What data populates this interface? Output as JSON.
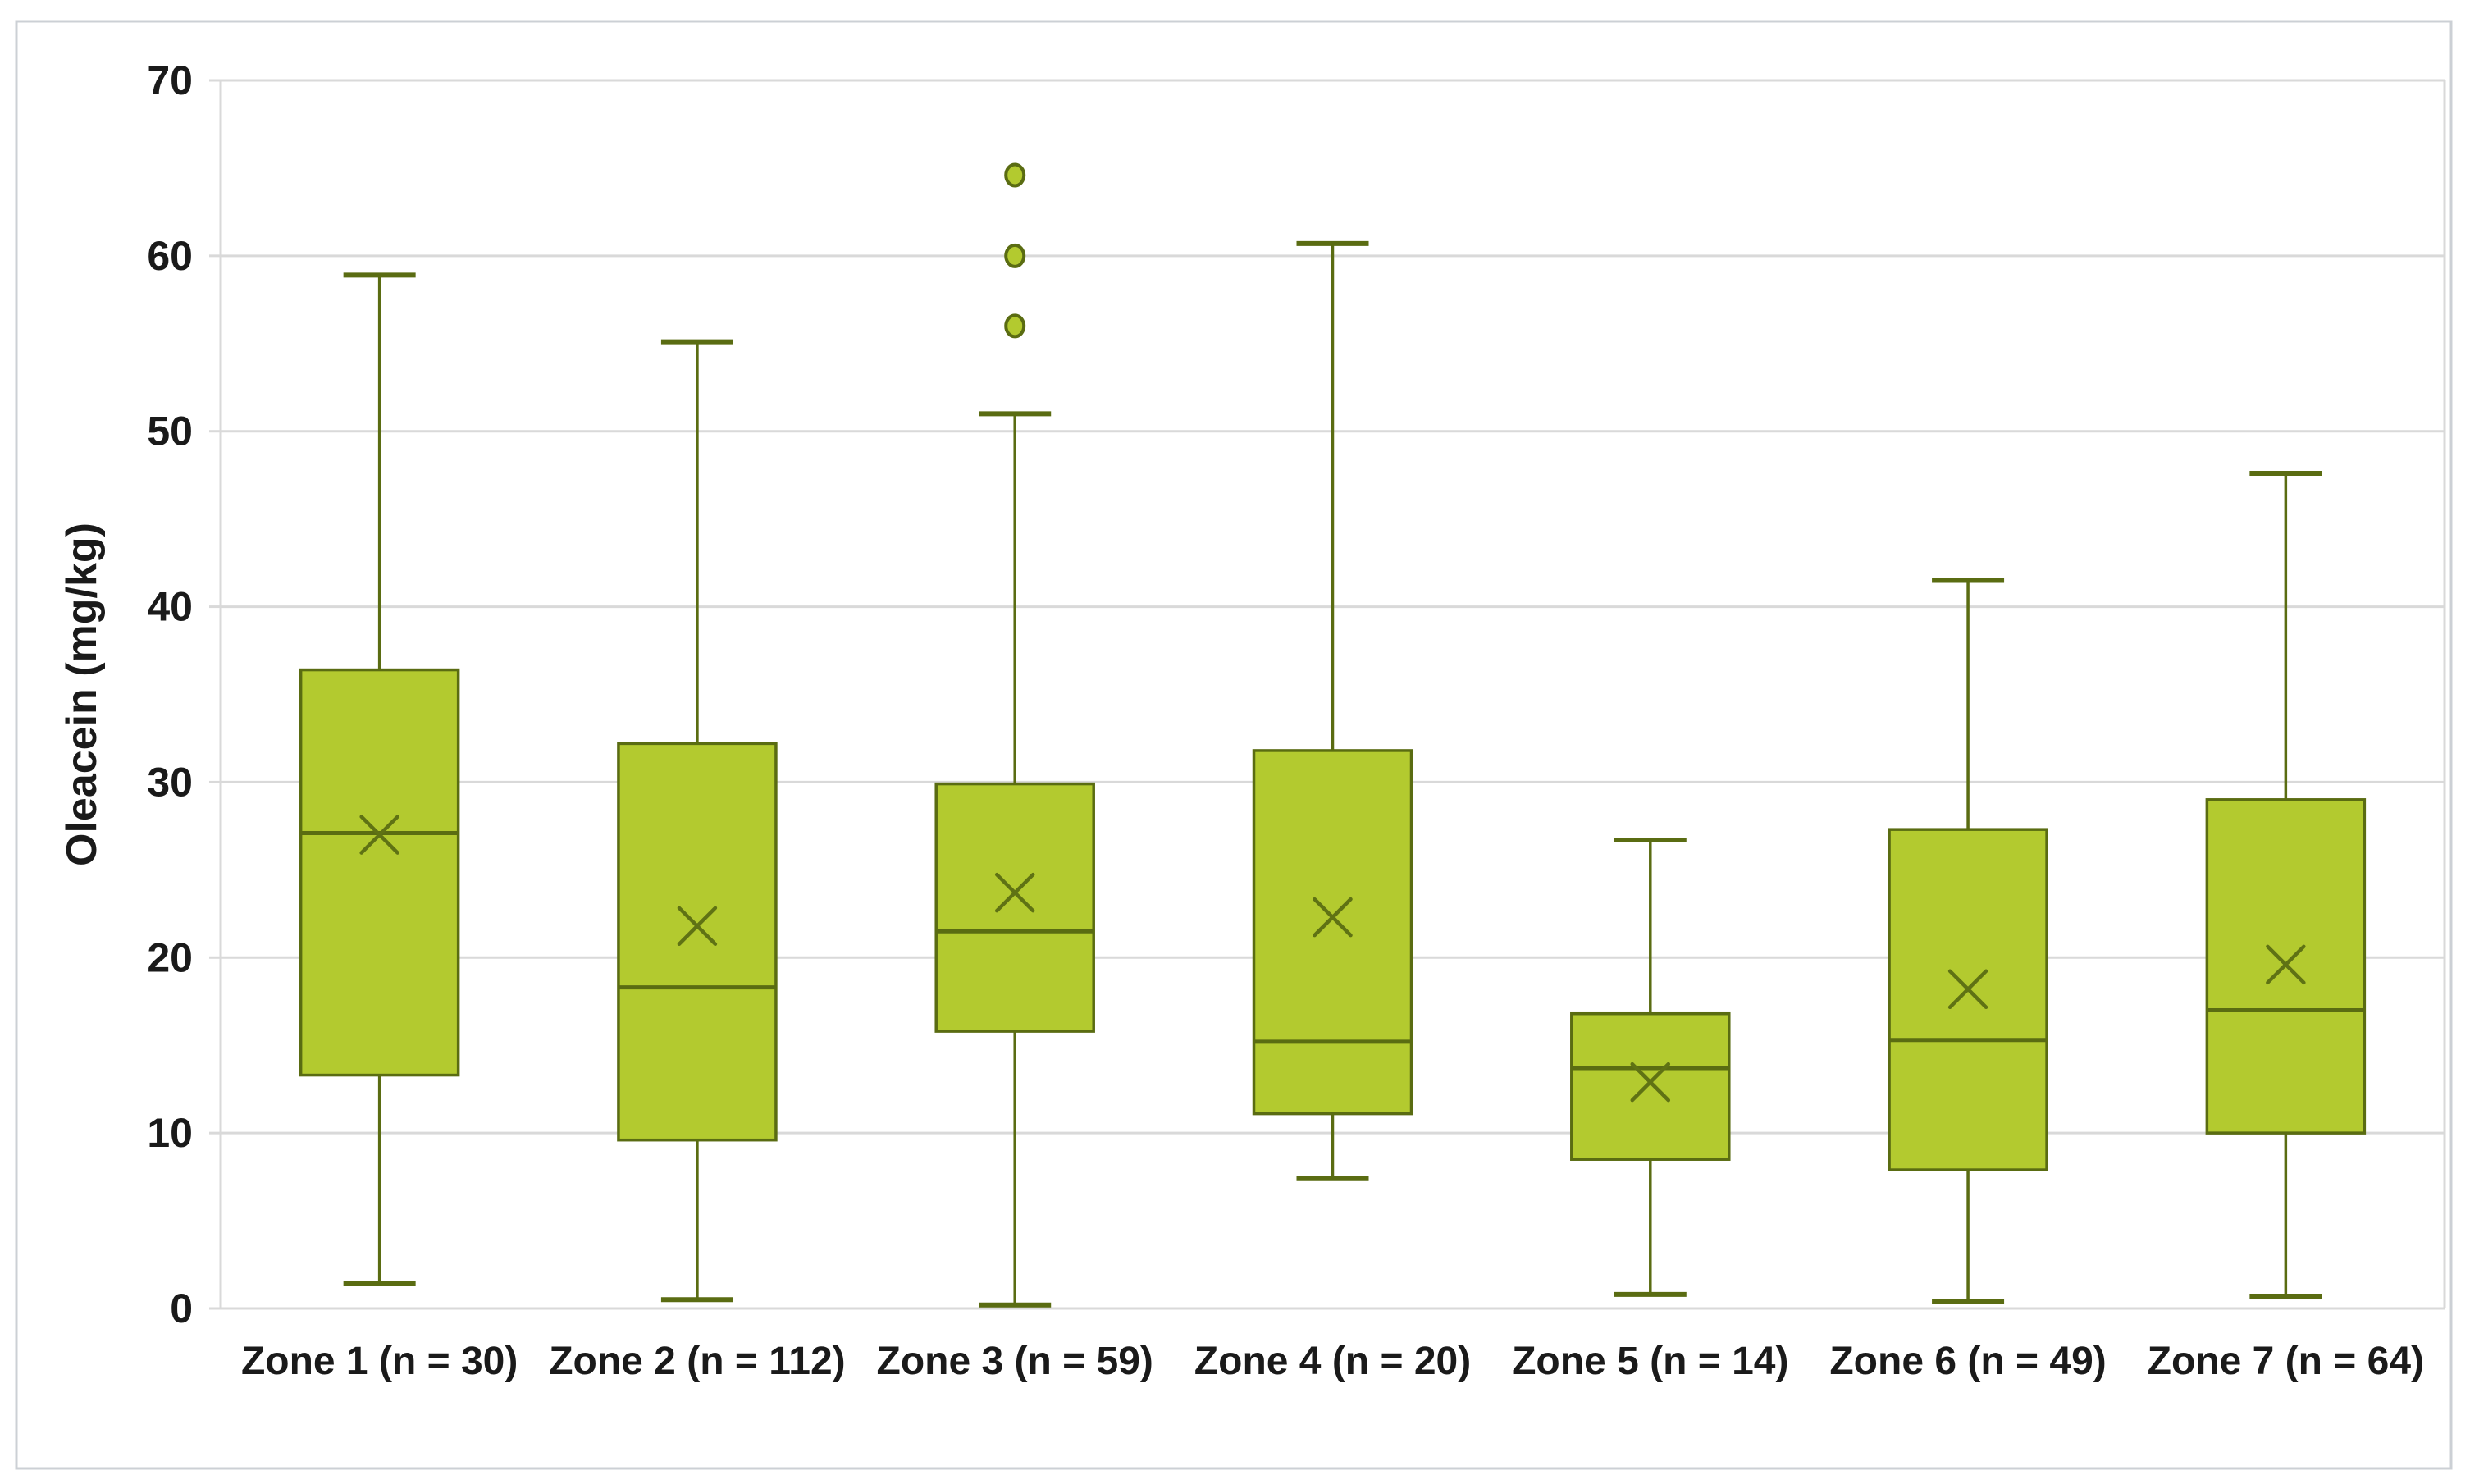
{
  "figure": {
    "background": "#ffffff",
    "border_color": "#ccd0d5"
  },
  "colors": {
    "box_fill": "#b3ca2f",
    "box_stroke": "#5a6c12",
    "whisker_stroke": "#5a6c12",
    "mean_marker_stroke": "#5f7214",
    "gridline": "#d9d9d9",
    "plot_border": "#d9d9d9",
    "tick": "#d9d9d9",
    "text": "#1a1a1a"
  },
  "chart_data": {
    "type": "box",
    "title": "",
    "xlabel": "",
    "ylabel": "Oleacein (mg/kg)",
    "ylim": [
      0,
      70
    ],
    "ytick_step": 10,
    "ytick_labels": [
      "0",
      "10",
      "20",
      "30",
      "40",
      "50",
      "60",
      "70"
    ],
    "grid": "horizontal-gridlines-on",
    "legend": "none",
    "categories": [
      "Zone 1 (n = 30)",
      "Zone 2 (n = 112)",
      "Zone 3 (n = 59)",
      "Zone 4 (n = 20)",
      "Zone 5 (n = 14)",
      "Zone 6 (n = 49)",
      "Zone 7 (n = 64)"
    ],
    "series": [
      {
        "label": "Zone 1 (n = 30)",
        "n": 30,
        "whisker_low": 1.4,
        "q1": 13.3,
        "median": 27.1,
        "mean": 27.0,
        "q3": 36.4,
        "whisker_high": 58.9,
        "outliers": []
      },
      {
        "label": "Zone 2 (n = 112)",
        "n": 112,
        "whisker_low": 0.5,
        "q1": 9.6,
        "median": 18.3,
        "mean": 21.8,
        "q3": 32.2,
        "whisker_high": 55.1,
        "outliers": []
      },
      {
        "label": "Zone 3 (n = 59)",
        "n": 59,
        "whisker_low": 0.2,
        "q1": 15.8,
        "median": 21.5,
        "mean": 23.7,
        "q3": 29.9,
        "whisker_high": 51.0,
        "outliers": [
          56.0,
          60.0,
          64.6
        ]
      },
      {
        "label": "Zone 4 (n = 20)",
        "n": 20,
        "whisker_low": 7.4,
        "q1": 11.1,
        "median": 15.2,
        "mean": 22.3,
        "q3": 31.8,
        "whisker_high": 60.7,
        "outliers": []
      },
      {
        "label": "Zone 5 (n = 14)",
        "n": 14,
        "whisker_low": 0.8,
        "q1": 8.5,
        "median": 13.7,
        "mean": 12.9,
        "q3": 16.8,
        "whisker_high": 26.7,
        "outliers": []
      },
      {
        "label": "Zone 6 (n = 49)",
        "n": 49,
        "whisker_low": 0.4,
        "q1": 7.9,
        "median": 15.3,
        "mean": 18.2,
        "q3": 27.3,
        "whisker_high": 41.5,
        "outliers": []
      },
      {
        "label": "Zone 7 (n = 64)",
        "n": 64,
        "whisker_low": 0.7,
        "q1": 10.0,
        "median": 17.0,
        "mean": 19.6,
        "q3": 29.0,
        "whisker_high": 47.6,
        "outliers": []
      }
    ]
  }
}
